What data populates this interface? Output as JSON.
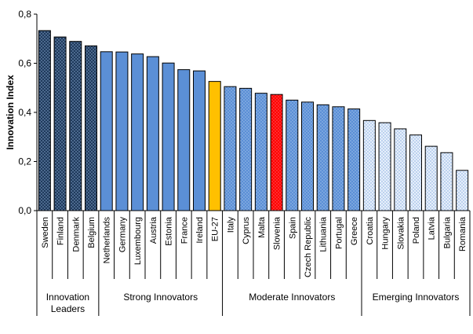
{
  "chart_data": {
    "type": "bar",
    "ylabel": "Innovation Index",
    "ylim": [
      0,
      0.8
    ],
    "yticks": [
      "0,0",
      "0,2",
      "0,4",
      "0,6",
      "0,8"
    ],
    "grid": false,
    "legend": "none",
    "categories": [
      "Sweden",
      "Finland",
      "Denmark",
      "Belgium",
      "Netherlands",
      "Germany",
      "Luxembourg",
      "Austria",
      "Estonia",
      "France",
      "Ireland",
      "EU-27",
      "Italy",
      "Cyprus",
      "Malta",
      "Slovenia",
      "Spain",
      "Czech Republic",
      "Lithuania",
      "Portugal",
      "Greece",
      "Croatia",
      "Hungary",
      "Slovakia",
      "Poland",
      "Latvia",
      "Bulgaria",
      "Romania"
    ],
    "values": [
      0.733,
      0.707,
      0.689,
      0.671,
      0.647,
      0.646,
      0.638,
      0.627,
      0.601,
      0.574,
      0.569,
      0.526,
      0.505,
      0.498,
      0.478,
      0.473,
      0.45,
      0.442,
      0.431,
      0.423,
      0.414,
      0.367,
      0.358,
      0.333,
      0.308,
      0.262,
      0.236,
      0.164
    ],
    "bar_styles": [
      "leader",
      "leader",
      "leader",
      "leader",
      "strong",
      "strong",
      "strong",
      "strong",
      "strong",
      "strong",
      "strong",
      "eu",
      "moderate",
      "moderate",
      "moderate",
      "highlight",
      "moderate",
      "moderate",
      "moderate",
      "moderate",
      "moderate",
      "emerging",
      "emerging",
      "emerging",
      "emerging",
      "emerging",
      "emerging",
      "emerging"
    ],
    "groups": [
      {
        "label_lines": [
          "Innovation",
          "Leaders"
        ],
        "start": 0,
        "end": 3
      },
      {
        "label_lines": [
          "Strong Innovators"
        ],
        "start": 4,
        "end": 11
      },
      {
        "label_lines": [
          "Moderate Innovators"
        ],
        "start": 12,
        "end": 20
      },
      {
        "label_lines": [
          "Emerging Innovators"
        ],
        "start": 21,
        "end": 27
      }
    ],
    "colors": {
      "leader": "#1f3a5c",
      "strong": "#5b8fd6",
      "eu": "#ffc000",
      "moderate": "#6a9ee0",
      "highlight": "#ff0000",
      "emerging": "#cfe0f7"
    }
  }
}
